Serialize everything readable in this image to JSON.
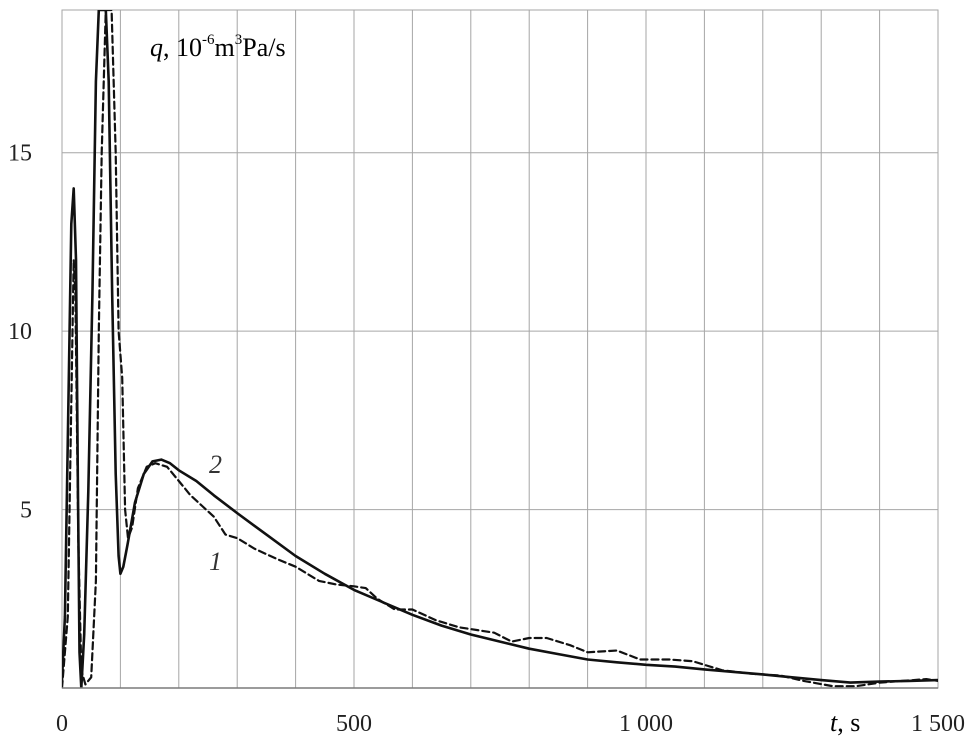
{
  "chart_data": {
    "type": "line",
    "ylabel": {
      "var": "q",
      "sep": ", 10",
      "exp1": "-6",
      "unit1": "m",
      "exp2": "3",
      "unit2": "Pa/s"
    },
    "xlabel": {
      "var": "t",
      "unit": ", s"
    },
    "xlim": [
      0,
      1500
    ],
    "ylim": [
      0,
      19
    ],
    "x_ticks": [
      {
        "value": 0,
        "label": "0"
      },
      {
        "value": 500,
        "label": "500"
      },
      {
        "value": 1000,
        "label": "1 000"
      },
      {
        "value": 1500,
        "label": "1 500"
      }
    ],
    "y_ticks": [
      {
        "value": 5,
        "label": "5"
      },
      {
        "value": 10,
        "label": "10"
      },
      {
        "value": 15,
        "label": "15"
      }
    ],
    "grid": true,
    "series": [
      {
        "name": "1",
        "style": "dashed",
        "points": [
          [
            0,
            0.0
          ],
          [
            10,
            2.0
          ],
          [
            16,
            8.0
          ],
          [
            20,
            12.0
          ],
          [
            23,
            11.0
          ],
          [
            28,
            4.0
          ],
          [
            33,
            0.5
          ],
          [
            40,
            0.1
          ],
          [
            50,
            0.3
          ],
          [
            58,
            3.0
          ],
          [
            63,
            10.0
          ],
          [
            68,
            15.0
          ],
          [
            75,
            19.0
          ],
          [
            85,
            19.0
          ],
          [
            92,
            15.0
          ],
          [
            97,
            10.0
          ],
          [
            103,
            8.7
          ],
          [
            108,
            5.0
          ],
          [
            113,
            4.2
          ],
          [
            120,
            4.5
          ],
          [
            130,
            5.6
          ],
          [
            145,
            6.2
          ],
          [
            160,
            6.3
          ],
          [
            180,
            6.2
          ],
          [
            200,
            5.8
          ],
          [
            220,
            5.4
          ],
          [
            240,
            5.1
          ],
          [
            260,
            4.8
          ],
          [
            280,
            4.3
          ],
          [
            300,
            4.2
          ],
          [
            330,
            3.9
          ],
          [
            370,
            3.6
          ],
          [
            400,
            3.4
          ],
          [
            440,
            3.0
          ],
          [
            470,
            2.9
          ],
          [
            500,
            2.85
          ],
          [
            520,
            2.8
          ],
          [
            540,
            2.5
          ],
          [
            570,
            2.2
          ],
          [
            600,
            2.2
          ],
          [
            640,
            1.9
          ],
          [
            680,
            1.7
          ],
          [
            720,
            1.6
          ],
          [
            740,
            1.55
          ],
          [
            770,
            1.3
          ],
          [
            800,
            1.4
          ],
          [
            830,
            1.4
          ],
          [
            870,
            1.2
          ],
          [
            900,
            1.0
          ],
          [
            950,
            1.05
          ],
          [
            990,
            0.8
          ],
          [
            1040,
            0.8
          ],
          [
            1080,
            0.75
          ],
          [
            1130,
            0.5
          ],
          [
            1180,
            0.4
          ],
          [
            1230,
            0.35
          ],
          [
            1270,
            0.2
          ],
          [
            1320,
            0.05
          ],
          [
            1360,
            0.05
          ],
          [
            1400,
            0.15
          ],
          [
            1440,
            0.2
          ],
          [
            1480,
            0.25
          ],
          [
            1500,
            0.2
          ]
        ]
      },
      {
        "name": "2",
        "style": "solid",
        "points": [
          [
            0,
            0.2
          ],
          [
            5,
            2.0
          ],
          [
            12,
            9.0
          ],
          [
            16,
            13.0
          ],
          [
            20,
            14.0
          ],
          [
            24,
            12.0
          ],
          [
            27,
            6.0
          ],
          [
            30,
            1.0
          ],
          [
            33,
            0.0
          ],
          [
            38,
            1.5
          ],
          [
            45,
            5.5
          ],
          [
            52,
            11.0
          ],
          [
            58,
            17.0
          ],
          [
            63,
            19.0
          ],
          [
            75,
            19.0
          ],
          [
            80,
            17.0
          ],
          [
            86,
            11.0
          ],
          [
            92,
            6.0
          ],
          [
            97,
            3.7
          ],
          [
            100,
            3.2
          ],
          [
            105,
            3.4
          ],
          [
            112,
            4.0
          ],
          [
            125,
            5.2
          ],
          [
            140,
            6.0
          ],
          [
            155,
            6.35
          ],
          [
            170,
            6.4
          ],
          [
            185,
            6.3
          ],
          [
            200,
            6.1
          ],
          [
            230,
            5.8
          ],
          [
            260,
            5.4
          ],
          [
            300,
            4.9
          ],
          [
            350,
            4.3
          ],
          [
            400,
            3.7
          ],
          [
            450,
            3.2
          ],
          [
            500,
            2.75
          ],
          [
            550,
            2.4
          ],
          [
            600,
            2.05
          ],
          [
            650,
            1.75
          ],
          [
            700,
            1.5
          ],
          [
            750,
            1.3
          ],
          [
            800,
            1.1
          ],
          [
            850,
            0.95
          ],
          [
            900,
            0.8
          ],
          [
            950,
            0.72
          ],
          [
            1000,
            0.65
          ],
          [
            1050,
            0.6
          ],
          [
            1100,
            0.52
          ],
          [
            1150,
            0.45
          ],
          [
            1200,
            0.38
          ],
          [
            1250,
            0.3
          ],
          [
            1300,
            0.22
          ],
          [
            1350,
            0.15
          ],
          [
            1400,
            0.18
          ],
          [
            1450,
            0.2
          ],
          [
            1500,
            0.22
          ]
        ]
      }
    ]
  }
}
